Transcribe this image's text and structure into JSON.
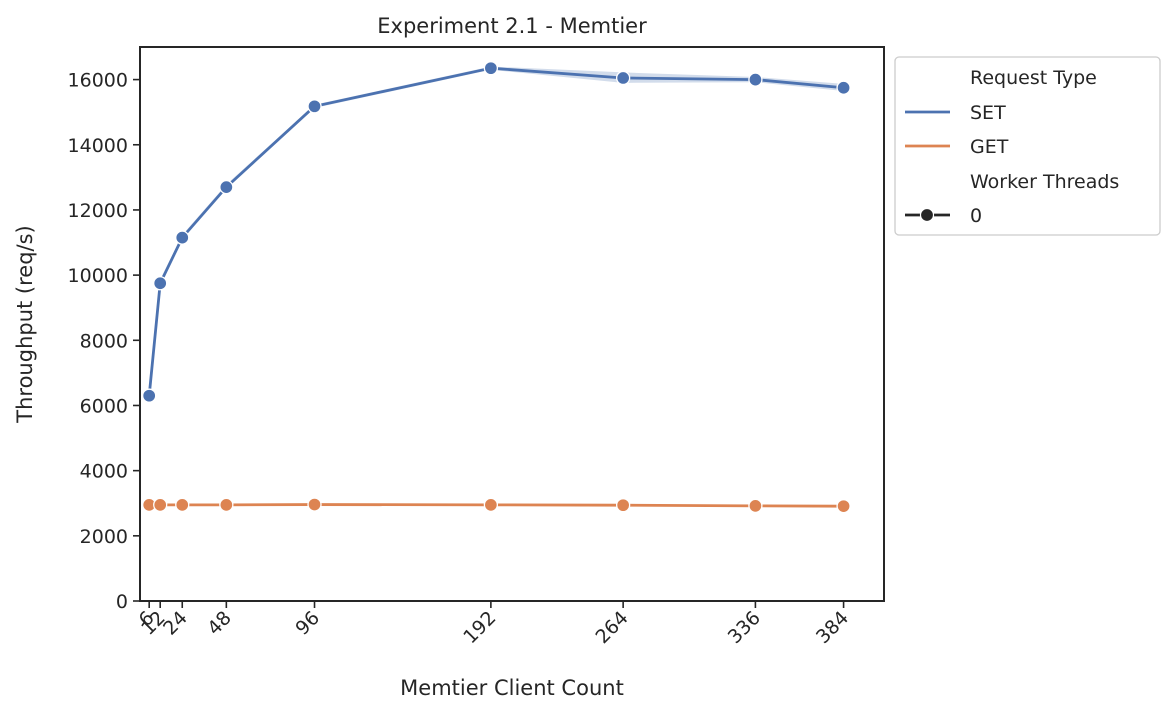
{
  "chart_data": {
    "type": "line",
    "title": "Experiment 2.1 - Memtier",
    "xlabel": "Memtier Client Count",
    "ylabel": "Throughput (req/s)",
    "x": [
      6,
      12,
      24,
      48,
      96,
      192,
      264,
      336,
      384
    ],
    "xticks": [
      "6",
      "12",
      "24",
      "48",
      "96",
      "192",
      "264",
      "336",
      "384"
    ],
    "yticks": [
      "0",
      "2000",
      "4000",
      "6000",
      "8000",
      "10000",
      "12000",
      "14000",
      "16000"
    ],
    "ylim": [
      0,
      17000
    ],
    "xlim": [
      1,
      406
    ],
    "grid": false,
    "series": [
      {
        "name": "SET",
        "color": "#4c72b0",
        "values": [
          6300,
          9750,
          11150,
          12700,
          15180,
          16350,
          16050,
          16000,
          15750
        ],
        "ci_low": [
          6200,
          9700,
          11100,
          12650,
          15130,
          16300,
          15900,
          15920,
          15650
        ],
        "ci_high": [
          6400,
          9850,
          11230,
          12780,
          15230,
          16400,
          16220,
          16080,
          15870
        ]
      },
      {
        "name": "GET",
        "color": "#dd8452",
        "values": [
          2950,
          2950,
          2950,
          2950,
          2960,
          2950,
          2940,
          2920,
          2910
        ],
        "ci_low": [
          2930,
          2930,
          2930,
          2930,
          2940,
          2930,
          2920,
          2900,
          2890
        ],
        "ci_high": [
          2970,
          2970,
          2970,
          2970,
          2980,
          2970,
          2960,
          2940,
          2930
        ]
      }
    ],
    "legend": {
      "placement": "outside-right-top",
      "hue_title": "Request Type",
      "style_title": "Worker Threads",
      "style_entries": [
        "0"
      ]
    }
  }
}
